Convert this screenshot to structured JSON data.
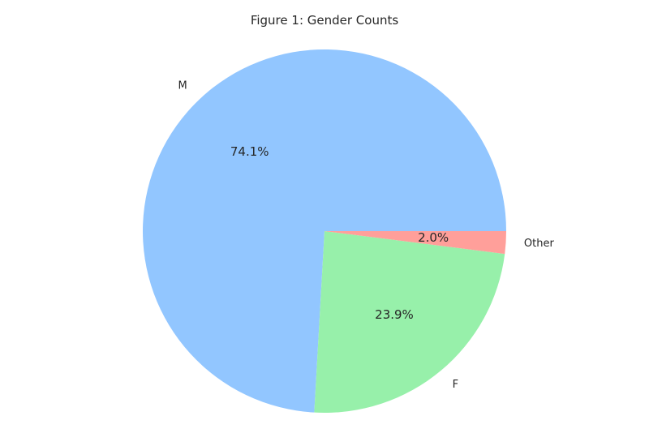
{
  "chart_data": {
    "type": "pie",
    "title": "Figure 1: Gender Counts",
    "slices": [
      {
        "label": "M",
        "value": 74.1,
        "pct_label": "74.1%",
        "color": "#92c6ff"
      },
      {
        "label": "F",
        "value": 23.9,
        "pct_label": "23.9%",
        "color": "#97f0aa"
      },
      {
        "label": "Other",
        "value": 2.0,
        "pct_label": "2.0%",
        "color": "#ff9f9a"
      }
    ],
    "start_angle_deg": 0,
    "direction": "counterclockwise",
    "legend": "none"
  }
}
